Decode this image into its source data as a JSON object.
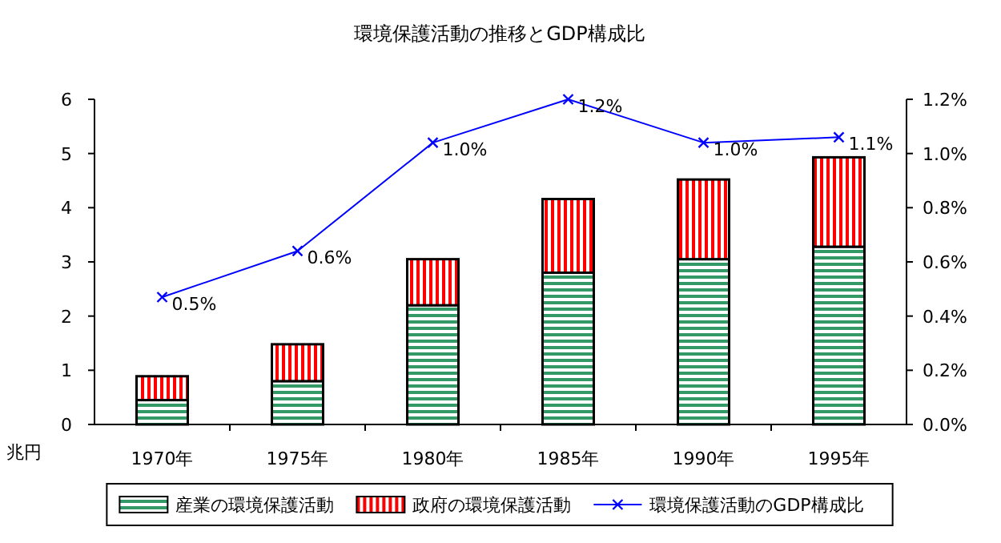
{
  "chart_data": {
    "type": "bar",
    "title": "環境保護活動の推移とGDP構成比",
    "ylabel": "兆円",
    "categories": [
      "1970年",
      "1975年",
      "1980年",
      "1985年",
      "1990年",
      "1995年"
    ],
    "stacked": true,
    "series": [
      {
        "name": "産業の環境保護活動",
        "color": "#339966",
        "values": [
          0.45,
          0.8,
          2.2,
          2.8,
          3.05,
          3.28
        ]
      },
      {
        "name": "政府の環境保護活動",
        "color": "#ff0000",
        "values": [
          0.44,
          0.68,
          0.85,
          1.36,
          1.47,
          1.65
        ]
      },
      {
        "name": "環境保護活動のGDP構成比",
        "type": "line",
        "axis": "y2",
        "color": "#0000ff",
        "marker": "cross",
        "values": [
          0.47,
          0.64,
          1.04,
          1.2,
          1.04,
          1.06
        ],
        "value_labels": [
          "0.5%",
          "0.6%",
          "1.0%",
          "1.2%",
          "1.0%",
          "1.1%"
        ]
      }
    ],
    "ylim": [
      0,
      6
    ],
    "yticks": [
      0,
      1,
      2,
      3,
      4,
      5,
      6
    ],
    "y2lim": [
      0,
      1.2
    ],
    "y2ticks": [
      {
        "value": 0,
        "label": "0.0%"
      },
      {
        "value": 0.2,
        "label": "0.2%"
      },
      {
        "value": 0.4,
        "label": "0.4%"
      },
      {
        "value": 0.6,
        "label": "0.6%"
      },
      {
        "value": 0.8,
        "label": "0.8%"
      },
      {
        "value": 1.0,
        "label": "1.0%"
      },
      {
        "value": 1.2,
        "label": "1.2%"
      }
    ],
    "legend": "bottom",
    "grid": false
  }
}
